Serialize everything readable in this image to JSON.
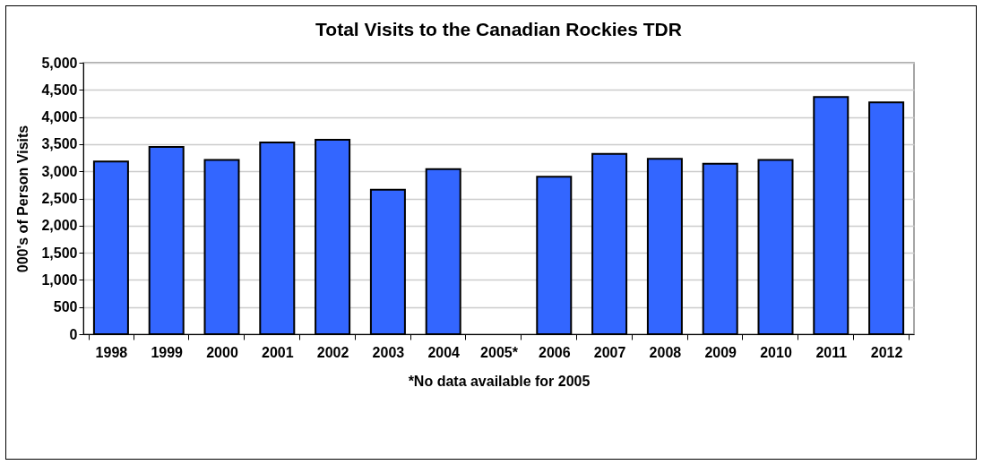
{
  "chart_data": {
    "type": "bar",
    "title": "Total Visits to the Canadian Rockies TDR",
    "ylabel": "000's of Person Visits",
    "annotations": [
      "*No data available for 2005"
    ],
    "categories": [
      "1998",
      "1999",
      "2000",
      "2001",
      "2002",
      "2003",
      "2004",
      "2005*",
      "2006",
      "2007",
      "2008",
      "2009",
      "2010",
      "2011",
      "2012"
    ],
    "values": [
      3180,
      3450,
      3210,
      3530,
      3580,
      2660,
      3040,
      null,
      2900,
      3320,
      3230,
      3140,
      3210,
      4370,
      4270
    ],
    "color": "#3366ff",
    "ylim": [
      0,
      5000
    ],
    "yticks": [
      {
        "value": 0,
        "label": "0"
      },
      {
        "value": 500,
        "label": "500"
      },
      {
        "value": 1000,
        "label": "1,000"
      },
      {
        "value": 1500,
        "label": "1,500"
      },
      {
        "value": 2000,
        "label": "2,000"
      },
      {
        "value": 2500,
        "label": "2,500"
      },
      {
        "value": 3000,
        "label": "3,000"
      },
      {
        "value": 3500,
        "label": "3,500"
      },
      {
        "value": 4000,
        "label": "4,000"
      },
      {
        "value": 4500,
        "label": "4,500"
      },
      {
        "value": 5000,
        "label": "5,000"
      }
    ],
    "grid": "y",
    "legend": false
  }
}
